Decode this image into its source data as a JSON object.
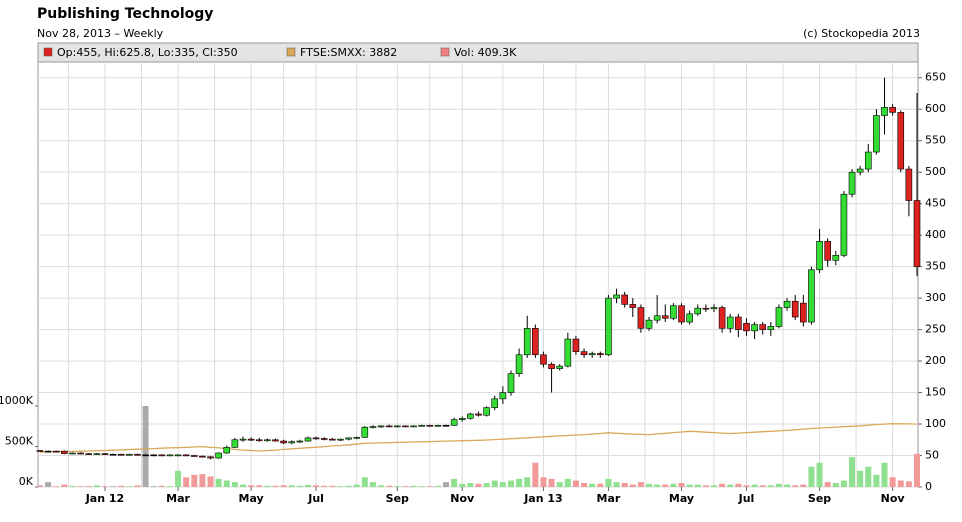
{
  "chart_data": {
    "type": "candlestick",
    "title": "Publishing Technology",
    "subtitle": "Nov 28, 2013 – Weekly",
    "source": "(c) Stockopedia 2013",
    "categories": [
      null,
      null,
      null,
      null,
      null,
      null,
      null,
      null,
      "Jan 12",
      null,
      null,
      null,
      null,
      null,
      null,
      null,
      null,
      "Mar",
      null,
      null,
      null,
      null,
      null,
      null,
      null,
      null,
      "May",
      null,
      null,
      null,
      null,
      null,
      null,
      null,
      "Jul",
      null,
      null,
      null,
      null,
      null,
      null,
      null,
      null,
      null,
      "Sep",
      null,
      null,
      null,
      null,
      null,
      null,
      null,
      "Nov",
      null,
      null,
      null,
      null,
      null,
      null,
      null,
      null,
      null,
      "Jan 13",
      null,
      null,
      null,
      null,
      null,
      null,
      null,
      "Mar",
      null,
      null,
      null,
      null,
      null,
      null,
      null,
      null,
      "May",
      null,
      null,
      null,
      null,
      null,
      null,
      null,
      "Jul",
      null,
      null,
      null,
      null,
      null,
      null,
      null,
      null,
      "Sep",
      null,
      null,
      null,
      null,
      null,
      null,
      null,
      null,
      "Nov",
      null,
      null,
      null
    ],
    "series": [
      {
        "name": "Op:455, Hi:625.8, Lo:335, Cl:350",
        "color": "#dd2222",
        "up_color": "#33dd33",
        "down_color": "#dd2222",
        "open": [
          58,
          57,
          57,
          57,
          53,
          54,
          53,
          52,
          53,
          52,
          52,
          51,
          52,
          51,
          51,
          51,
          50,
          50,
          51,
          50,
          49,
          48,
          46,
          54,
          63,
          75,
          76,
          75,
          74,
          75,
          73,
          70,
          72,
          73,
          78,
          77,
          76,
          75,
          76,
          78,
          79,
          95,
          96,
          97,
          96,
          97,
          96,
          97,
          98,
          97,
          98,
          98,
          107,
          109,
          116,
          114,
          126,
          140,
          150,
          180,
          210,
          252,
          210,
          195,
          188,
          192,
          235,
          215,
          210,
          212,
          210,
          300,
          305,
          290,
          285,
          252,
          265,
          272,
          268,
          288,
          262,
          275,
          284,
          283,
          285,
          252,
          270,
          260,
          248,
          258,
          250,
          255,
          285,
          295,
          292,
          262,
          345,
          390,
          360,
          368,
          465,
          500,
          505,
          532,
          590,
          603,
          595,
          505,
          455
        ],
        "high": [
          59,
          58,
          58,
          58,
          55,
          55,
          54,
          54,
          54,
          53,
          53,
          53,
          53,
          52,
          52,
          52,
          52,
          52,
          52,
          51,
          50,
          49,
          55,
          66,
          78,
          80,
          79,
          78,
          77,
          77,
          75,
          74,
          75,
          80,
          80,
          79,
          78,
          77,
          79,
          80,
          97,
          98,
          98,
          99,
          98,
          98,
          98,
          99,
          99,
          99,
          99,
          110,
          112,
          118,
          120,
          128,
          145,
          160,
          185,
          220,
          272,
          258,
          215,
          198,
          195,
          245,
          240,
          220,
          215,
          215,
          305,
          315,
          310,
          300,
          290,
          270,
          305,
          290,
          292,
          292,
          280,
          290,
          290,
          290,
          288,
          275,
          275,
          268,
          262,
          262,
          262,
          290,
          300,
          305,
          305,
          350,
          410,
          395,
          375,
          470,
          505,
          510,
          545,
          600,
          650,
          608,
          598,
          510,
          625.8
        ],
        "low": [
          56,
          56,
          55,
          52,
          52,
          52,
          51,
          51,
          51,
          50,
          50,
          50,
          50,
          50,
          49,
          49,
          49,
          49,
          49,
          48,
          47,
          44,
          45,
          53,
          62,
          72,
          73,
          72,
          72,
          72,
          68,
          68,
          70,
          72,
          75,
          74,
          74,
          73,
          74,
          76,
          78,
          93,
          94,
          95,
          95,
          95,
          95,
          96,
          96,
          96,
          96,
          97,
          104,
          107,
          112,
          112,
          122,
          132,
          145,
          175,
          205,
          205,
          190,
          150,
          185,
          190,
          210,
          205,
          205,
          205,
          208,
          292,
          285,
          270,
          245,
          248,
          260,
          262,
          265,
          258,
          258,
          272,
          278,
          278,
          245,
          245,
          238,
          240,
          235,
          242,
          240,
          252,
          280,
          265,
          255,
          258,
          340,
          350,
          352,
          365,
          460,
          495,
          500,
          528,
          560,
          590,
          500,
          430,
          335
        ],
        "close": [
          57,
          57,
          56,
          53,
          54,
          53,
          52,
          53,
          52,
          52,
          51,
          52,
          51,
          51,
          51,
          50,
          51,
          51,
          50,
          49,
          48,
          46,
          54,
          63,
          75,
          76,
          75,
          74,
          75,
          73,
          70,
          72,
          73,
          78,
          77,
          76,
          75,
          76,
          78,
          79,
          95,
          96,
          97,
          96,
          97,
          96,
          97,
          98,
          97,
          98,
          98,
          107,
          109,
          116,
          114,
          126,
          140,
          150,
          180,
          210,
          252,
          210,
          195,
          188,
          192,
          235,
          215,
          210,
          212,
          210,
          300,
          305,
          290,
          285,
          252,
          265,
          272,
          268,
          288,
          262,
          275,
          284,
          283,
          285,
          252,
          270,
          250,
          248,
          258,
          250,
          255,
          285,
          295,
          270,
          262,
          345,
          390,
          360,
          368,
          465,
          500,
          505,
          532,
          590,
          603,
          595,
          505,
          455,
          350
        ]
      },
      {
        "name": "FTSE:SMXX: 3882",
        "color": "#d9a85a",
        "axis": "y3",
        "values": [
          2600,
          2605,
          2610,
          2620,
          2630,
          2640,
          2650,
          2660,
          2670,
          2685,
          2700,
          2715,
          2730,
          2745,
          2760,
          2775,
          2790,
          2800,
          2815,
          2830,
          2850,
          2820,
          2790,
          2760,
          2720,
          2690,
          2670,
          2650,
          2670,
          2690,
          2720,
          2750,
          2770,
          2800,
          2820,
          2850,
          2880,
          2900,
          2930,
          2960,
          3000,
          3010,
          3020,
          3030,
          3040,
          3050,
          3060,
          3070,
          3080,
          3090,
          3100,
          3110,
          3120,
          3130,
          3140,
          3150,
          3170,
          3190,
          3210,
          3230,
          3250,
          3270,
          3300,
          3320,
          3340,
          3360,
          3380,
          3400,
          3420,
          3450,
          3480,
          3460,
          3440,
          3420,
          3410,
          3400,
          3430,
          3460,
          3490,
          3520,
          3550,
          3530,
          3510,
          3490,
          3470,
          3450,
          3470,
          3490,
          3510,
          3530,
          3550,
          3570,
          3590,
          3620,
          3650,
          3680,
          3700,
          3720,
          3740,
          3760,
          3780,
          3800,
          3830,
          3860,
          3880,
          3900,
          3895,
          3890,
          3882
        ]
      },
      {
        "name": "Vol: 409.3K",
        "color": "#f08080",
        "axis": "y2",
        "up_color": "#8fe08f",
        "down_color": "#f29a9a",
        "flat_color": "#aaaaaa",
        "values": [
          20,
          60,
          10,
          30,
          15,
          10,
          10,
          20,
          10,
          10,
          15,
          10,
          20,
          1000,
          10,
          15,
          10,
          200,
          120,
          150,
          160,
          130,
          100,
          80,
          60,
          30,
          20,
          20,
          15,
          15,
          20,
          20,
          15,
          25,
          20,
          15,
          15,
          10,
          15,
          30,
          120,
          60,
          20,
          15,
          10,
          10,
          15,
          10,
          10,
          15,
          60,
          100,
          40,
          50,
          40,
          50,
          80,
          60,
          80,
          100,
          120,
          300,
          120,
          100,
          60,
          100,
          80,
          50,
          40,
          40,
          100,
          60,
          50,
          30,
          60,
          40,
          30,
          30,
          40,
          50,
          30,
          30,
          20,
          20,
          40,
          30,
          40,
          20,
          30,
          20,
          20,
          40,
          30,
          20,
          30,
          250,
          300,
          60,
          50,
          80,
          370,
          200,
          250,
          150,
          300,
          120,
          80,
          70,
          409.3
        ]
      }
    ],
    "ylim": [
      0,
      675
    ],
    "yticks": [
      0,
      50,
      100,
      150,
      200,
      250,
      300,
      350,
      400,
      450,
      500,
      550,
      600,
      650
    ],
    "y2lim": [
      0,
      5247
    ],
    "y2ticks": [
      {
        "value": 0,
        "label": "0K"
      },
      {
        "value": 500,
        "label": "500K"
      },
      {
        "value": 1000,
        "label": "1000K"
      }
    ],
    "y3lim": [
      1000,
      20460
    ],
    "grid": true
  }
}
